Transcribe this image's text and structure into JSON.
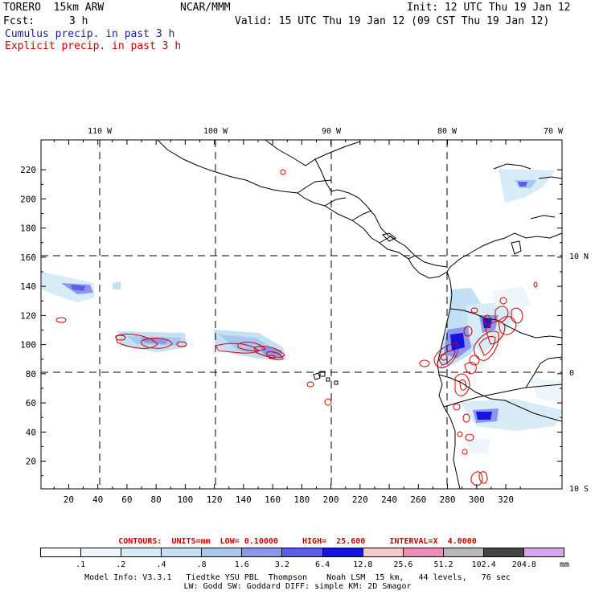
{
  "header": {
    "model": "TORERO  15km ARW",
    "org": "NCAR/MMM",
    "init": "Init: 12 UTC Thu 19 Jan 12",
    "fcst_label": "Fcst:",
    "fcst_value": "3 h",
    "valid": "Valid: 15 UTC Thu 19 Jan 12 (09 CST Thu 19 Jan 12)",
    "line1": "Cumulus precip. in past 3 h",
    "line2": "Explicit precip. in past 3 h"
  },
  "map": {
    "lon_labels": [
      "110 W",
      "100 W",
      "90 W",
      "80 W",
      "70 W"
    ],
    "lat_labels": [
      "10 N",
      "0",
      "10 S"
    ],
    "x_ticks": [
      "20",
      "40",
      "60",
      "80",
      "100",
      "120",
      "140",
      "160",
      "180",
      "200",
      "220",
      "240",
      "260",
      "280",
      "300",
      "320"
    ],
    "y_ticks": [
      "20",
      "40",
      "60",
      "80",
      "100",
      "120",
      "140",
      "160",
      "180",
      "200",
      "220"
    ],
    "colors": {
      "coast": "#000000",
      "grid": "#000000",
      "contour": "#d40000"
    }
  },
  "contours_line": "CONTOURS:  UNITS=mm  LOW= 0.10000     HIGH=  25.600     INTERVAL=X  4.0000",
  "legend": {
    "labels": [
      ".1",
      ".2",
      ".4",
      ".8",
      "1.6",
      "3.2",
      "6.4",
      "12.8",
      "25.6",
      "51.2",
      "102.4",
      "204.8"
    ],
    "unit": "mm",
    "colors": [
      "#ffffff",
      "#eef6fb",
      "#d8ecf8",
      "#c4e0f4",
      "#a9c8f0",
      "#8c96ea",
      "#5a5ee6",
      "#1515e0",
      "#f6c8c8",
      "#ee8cba",
      "#b8b8b8",
      "#444444",
      "#d8a6f0"
    ]
  },
  "footer": {
    "line1": "Model Info: V3.3.1   Tiedtke YSU PBL  Thompson    Noah LSM  15 km,   44 levels,   76 sec",
    "line2": "LW: Godd SW: Goddard DIFF: simple KM: 2D Smagor"
  }
}
